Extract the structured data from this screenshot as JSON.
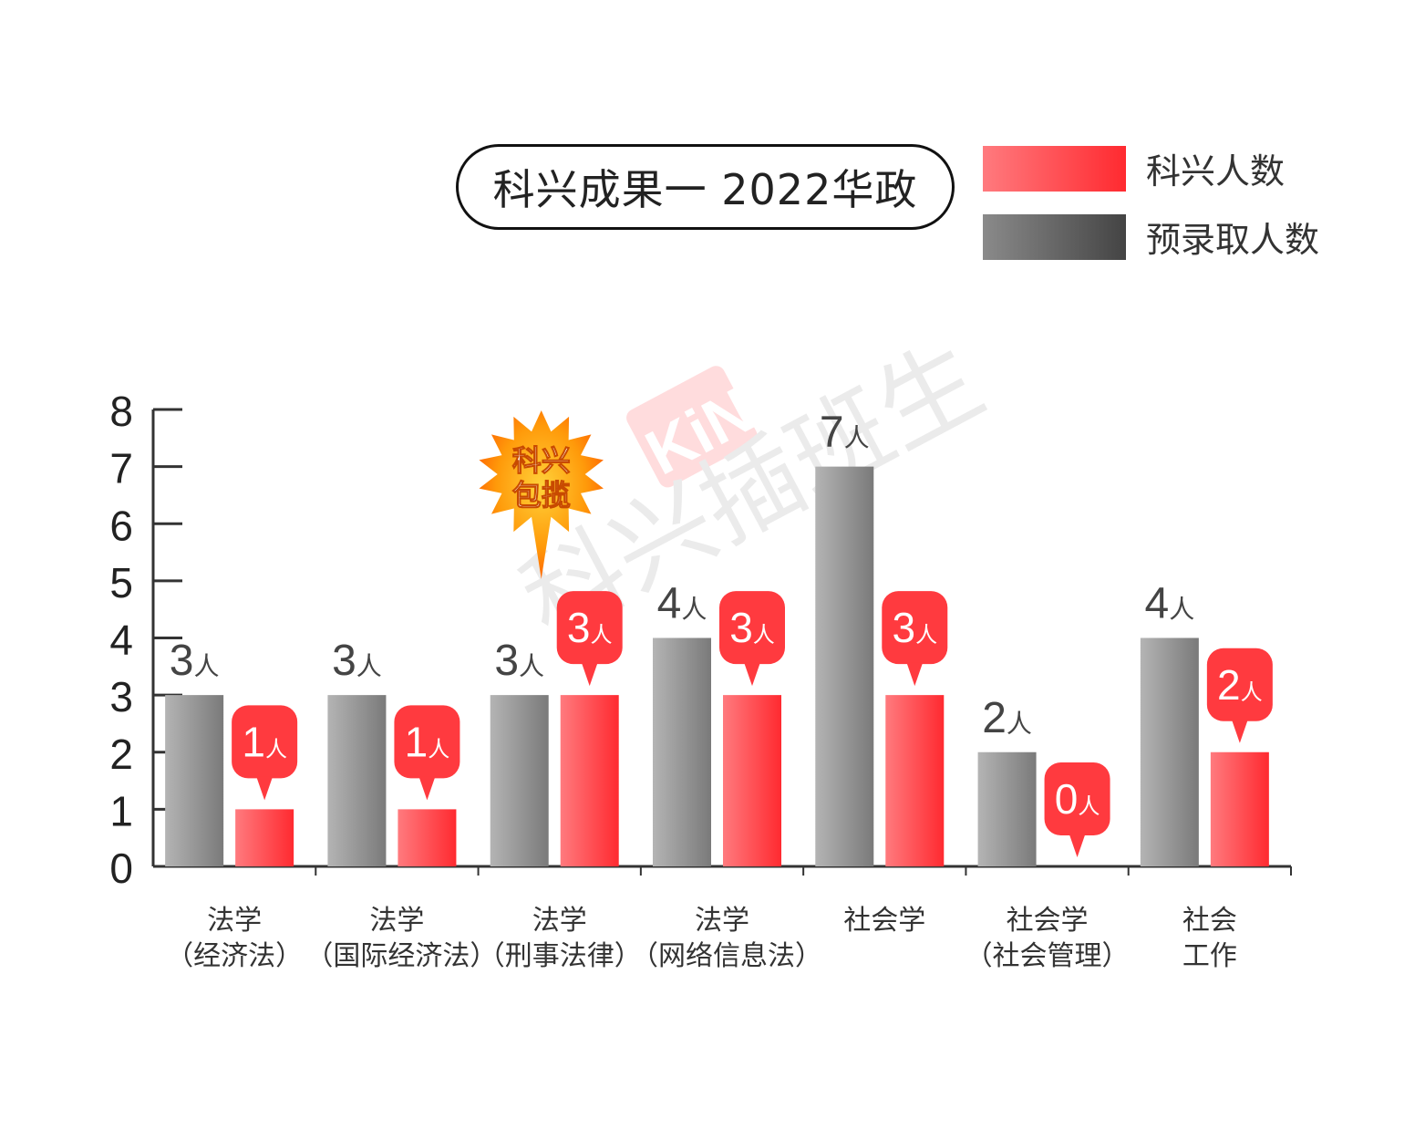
{
  "chart_data": {
    "type": "bar",
    "title": "科兴成果一 2022华政",
    "categories": [
      [
        "法学",
        "（经济法）"
      ],
      [
        "法学",
        "（国际经济法）"
      ],
      [
        "法学",
        "（刑事法律）"
      ],
      [
        "法学",
        "（网络信息法）"
      ],
      [
        "社会学"
      ],
      [
        "社会学",
        "（社会管理）"
      ],
      [
        "社会",
        "工作"
      ]
    ],
    "series": [
      {
        "name": "预录取人数",
        "values": [
          3,
          3,
          3,
          4,
          7,
          2,
          4
        ],
        "labels": [
          "3人",
          "3人",
          "3人",
          "4人",
          "7人",
          "2人",
          "4人"
        ]
      },
      {
        "name": "科兴人数",
        "values": [
          1,
          1,
          3,
          3,
          3,
          0,
          2
        ],
        "labels": [
          "1人",
          "1人",
          "3人",
          "3人",
          "3人",
          "0人",
          "2人"
        ]
      }
    ],
    "ylim": [
      0,
      8
    ],
    "yticks": [
      0,
      1,
      2,
      3,
      4,
      5,
      6,
      7,
      8
    ],
    "unit": "人",
    "legend_position": "top-right",
    "colors": {
      "keyxing": "#ff3a3f",
      "keyxing_light": "#ff7a7e",
      "admit": "#808080",
      "admit_light": "#b4b4b4",
      "admit_dark": "#4a4a4a"
    },
    "annotation": {
      "text": [
        "科兴",
        "包揽"
      ],
      "category_index": 2,
      "color": "#ff8a00"
    },
    "watermark": {
      "logo": "KiNG",
      "text": "科兴插班生"
    }
  },
  "legend": [
    {
      "label": "科兴人数",
      "swatch": "keyxing"
    },
    {
      "label": "预录取人数",
      "swatch": "admit"
    }
  ]
}
